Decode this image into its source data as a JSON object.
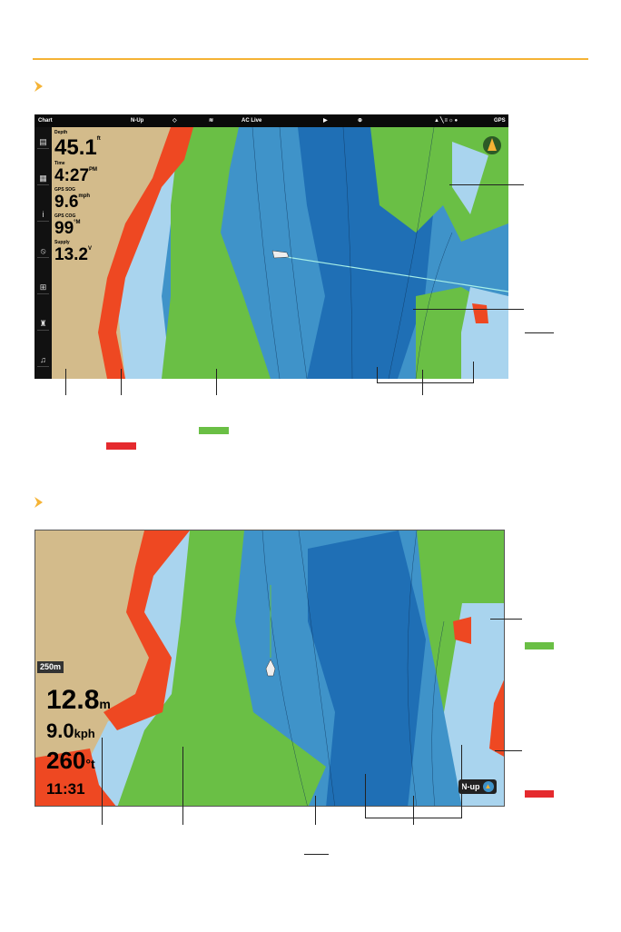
{
  "colors": {
    "accent": "#f5b335",
    "land": "#d3bb8b",
    "shallow": "#ee4822",
    "light_water": "#a9d4ee",
    "green_band": "#6abf45",
    "mid_water": "#3f93c9",
    "deep_water": "#1f6fb5",
    "swatch_green": "#6abf45",
    "swatch_red": "#e52a2e"
  },
  "screenshot1": {
    "topbar": {
      "title": "Chart",
      "orientation": "N-Up",
      "ac_live": "AC Live",
      "status": "GPS"
    },
    "sidebar_icons": [
      "chart-icon",
      "calendar-icon",
      "fish-finder-icon",
      "navigation-icon",
      "grid-icon",
      "motor-icon",
      "music-icon"
    ],
    "data_boxes": [
      {
        "label": "Depth",
        "value": "45.1",
        "unit": "ft"
      },
      {
        "label": "Time",
        "value": "4:27",
        "unit": "PM"
      },
      {
        "label": "GPS SOG",
        "value": "9.6",
        "unit": "mph"
      },
      {
        "label": "GPS COG",
        "value": "99",
        "unit": "°M"
      },
      {
        "label": "Supply",
        "value": "13.2",
        "unit": "V"
      }
    ]
  },
  "screenshot2": {
    "scale": "250m",
    "depth": {
      "value": "12.8",
      "unit": "m"
    },
    "speed": {
      "value": "9.0",
      "unit": "kph"
    },
    "heading": {
      "value": "260",
      "unit": "°t"
    },
    "time": "11:31",
    "orientation": "N-up"
  }
}
